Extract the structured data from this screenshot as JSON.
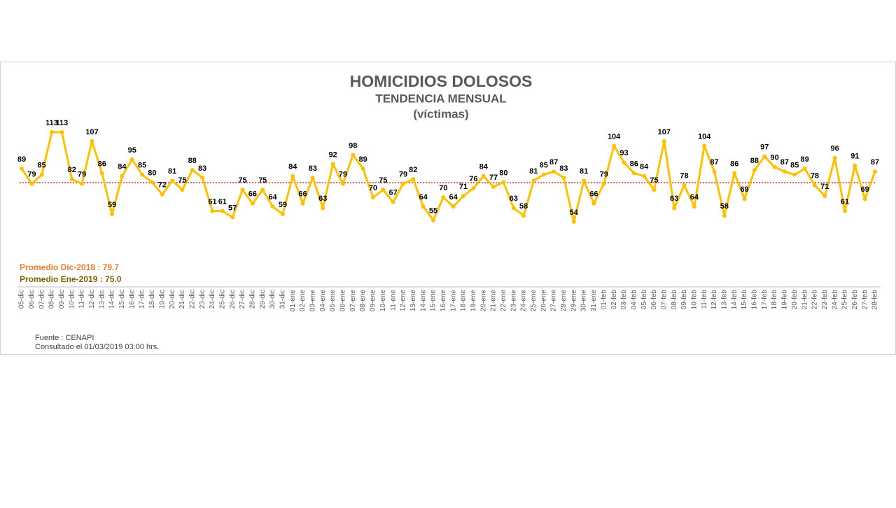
{
  "chart_data": {
    "type": "line",
    "title": "HOMICIDIOS DOLOSOS",
    "subtitle": "TENDENCIA MENSUAL",
    "subtitle2": "(víctimas)",
    "categories": [
      "05-dic",
      "06-dic",
      "07-dic",
      "08-dic",
      "09-dic",
      "10-dic",
      "11-dic",
      "12-dic",
      "13-dic",
      "14-dic",
      "15-dic",
      "16-dic",
      "17-dic",
      "18-dic",
      "19-dic",
      "20-dic",
      "21-dic",
      "22-dic",
      "23-dic",
      "24-dic",
      "25-dic",
      "26-dic",
      "27-dic",
      "28-dic",
      "29-dic",
      "30-dic",
      "31-dic",
      "01-ene",
      "02-ene",
      "03-ene",
      "04-ene",
      "05-ene",
      "06-ene",
      "07-ene",
      "08-ene",
      "09-ene",
      "10-ene",
      "11-ene",
      "12-ene",
      "13-ene",
      "14-ene",
      "15-ene",
      "16-ene",
      "17-ene",
      "18-ene",
      "19-ene",
      "20-ene",
      "21-ene",
      "22-ene",
      "23-ene",
      "24-ene",
      "25-ene",
      "26-ene",
      "27-ene",
      "28-ene",
      "29-ene",
      "30-ene",
      "31-ene",
      "01-feb",
      "02-feb",
      "03-feb",
      "04-feb",
      "05-feb",
      "06-feb",
      "07-feb",
      "08-feb",
      "09-feb",
      "10-feb",
      "11-feb",
      "12-feb",
      "13-feb",
      "14-feb",
      "15-feb",
      "16-feb",
      "17-feb",
      "18-feb",
      "19-feb",
      "20-feb",
      "21-feb",
      "22-feb",
      "23-feb",
      "24-feb",
      "25-feb",
      "26-feb",
      "27-feb",
      "28-feb"
    ],
    "values": [
      89,
      79,
      85,
      113,
      113,
      82,
      79,
      107,
      86,
      59,
      84,
      95,
      85,
      80,
      72,
      81,
      75,
      88,
      83,
      61,
      61,
      57,
      75,
      66,
      75,
      64,
      59,
      84,
      66,
      83,
      63,
      92,
      79,
      98,
      89,
      70,
      75,
      67,
      79,
      82,
      64,
      55,
      70,
      64,
      71,
      76,
      84,
      77,
      80,
      63,
      58,
      81,
      85,
      87,
      83,
      54,
      81,
      66,
      79,
      104,
      93,
      86,
      84,
      75,
      107,
      63,
      78,
      64,
      104,
      87,
      58,
      86,
      69,
      88,
      97,
      90,
      87,
      85,
      89,
      78,
      71,
      96,
      61,
      91,
      69,
      87
    ],
    "color": "#ffc000",
    "ylim": [
      0,
      130
    ],
    "reference_line": 79.7,
    "reference_color": "#e02020",
    "annotations": [
      {
        "text": "Promedio Dic-2018  : 79.7",
        "color": "#ed7d31"
      },
      {
        "text": "Promedio Ene-2019 : 75.0",
        "color": "#7f6000"
      }
    ],
    "source": "Fuente : CENAPI",
    "consulted": "Consultado el 01/03/2019  03:00 hrs."
  }
}
